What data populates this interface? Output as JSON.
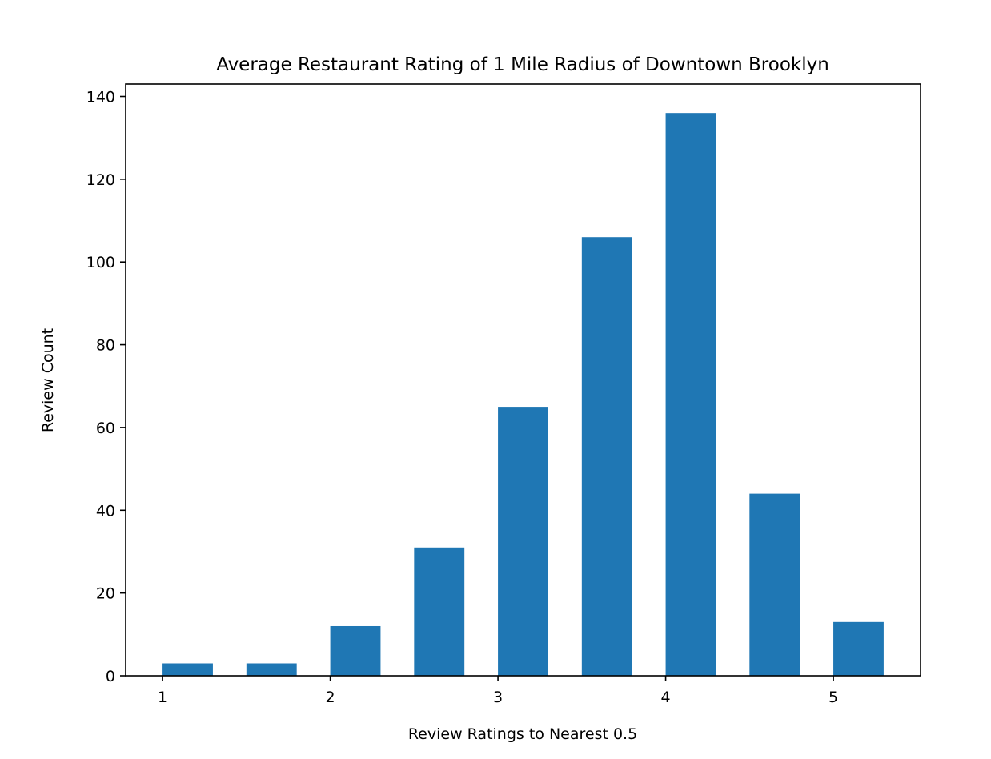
{
  "chart_data": {
    "type": "bar",
    "title": "Average Restaurant Rating of 1 Mile Radius of Downtown Brooklyn",
    "xlabel": "Review Ratings to Nearest 0.5",
    "ylabel": "Review Count",
    "x": [
      1.0,
      1.5,
      2.0,
      2.5,
      3.0,
      3.5,
      4.0,
      4.5,
      5.0
    ],
    "values": [
      3,
      3,
      12,
      31,
      65,
      106,
      136,
      44,
      13
    ],
    "bar_width": 0.3,
    "xlim": [
      0.78,
      5.52
    ],
    "ylim": [
      0,
      143
    ],
    "xticks": [
      1,
      2,
      3,
      4,
      5
    ],
    "xtick_labels": [
      "1",
      "2",
      "3",
      "4",
      "5"
    ],
    "yticks": [
      0,
      20,
      40,
      60,
      80,
      100,
      120,
      140
    ],
    "ytick_labels": [
      "0",
      "20",
      "40",
      "60",
      "80",
      "100",
      "120",
      "140"
    ],
    "bar_color": "#1f77b4",
    "grid": false,
    "legend": "none"
  }
}
